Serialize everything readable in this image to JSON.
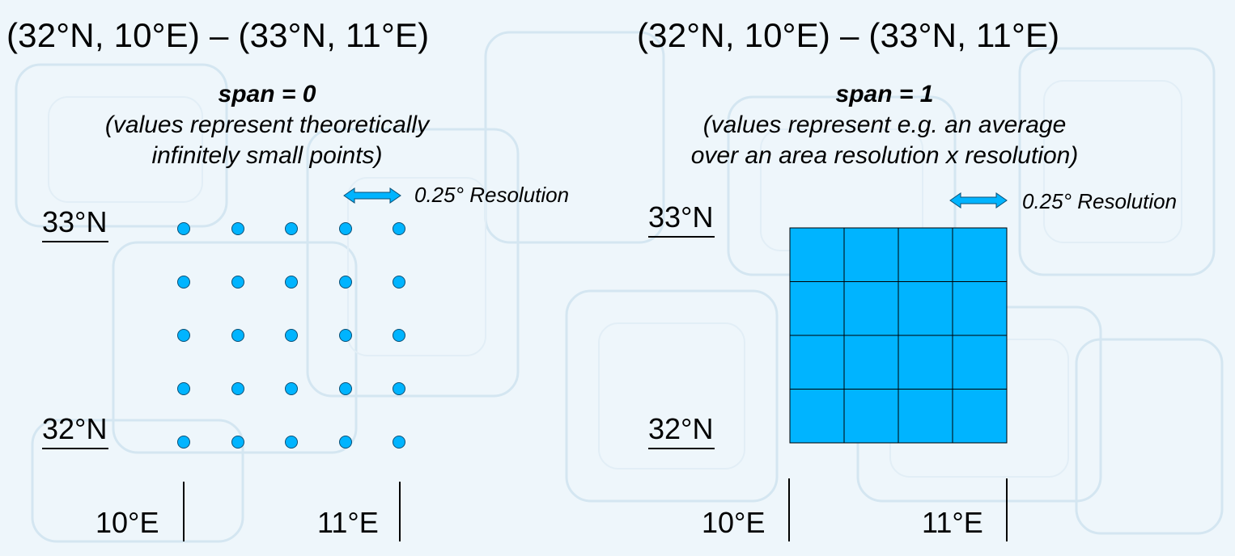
{
  "left": {
    "range_title": "(32°N, 10°E) – (33°N, 11°E)",
    "span_label": "span = 0",
    "span_desc_line1": "(values represent theoretically",
    "span_desc_line2": "infinitely small points)",
    "resolution_label": "0.25° Resolution",
    "lat_top": "33°N",
    "lat_bottom": "32°N",
    "lon_left": "10°E",
    "lon_right": "11°E"
  },
  "right": {
    "range_title": "(32°N, 10°E) – (33°N, 11°E)",
    "span_label": "span = 1",
    "span_desc_line1": "(values represent e.g. an average",
    "span_desc_line2": "over an area resolution x resolution)",
    "resolution_label": "0.25° Resolution",
    "lat_top": "33°N",
    "lat_bottom": "32°N",
    "lon_left": "10°E",
    "lon_right": "11°E"
  },
  "colors": {
    "point_fill": "#00b4ff",
    "cell_fill": "#00b4ff",
    "arrow_fill": "#00b4ff",
    "background": "#eef6fb"
  },
  "grid": {
    "lat_min": 32,
    "lat_max": 33,
    "lon_min": 10,
    "lon_max": 11,
    "resolution": 0.25
  }
}
